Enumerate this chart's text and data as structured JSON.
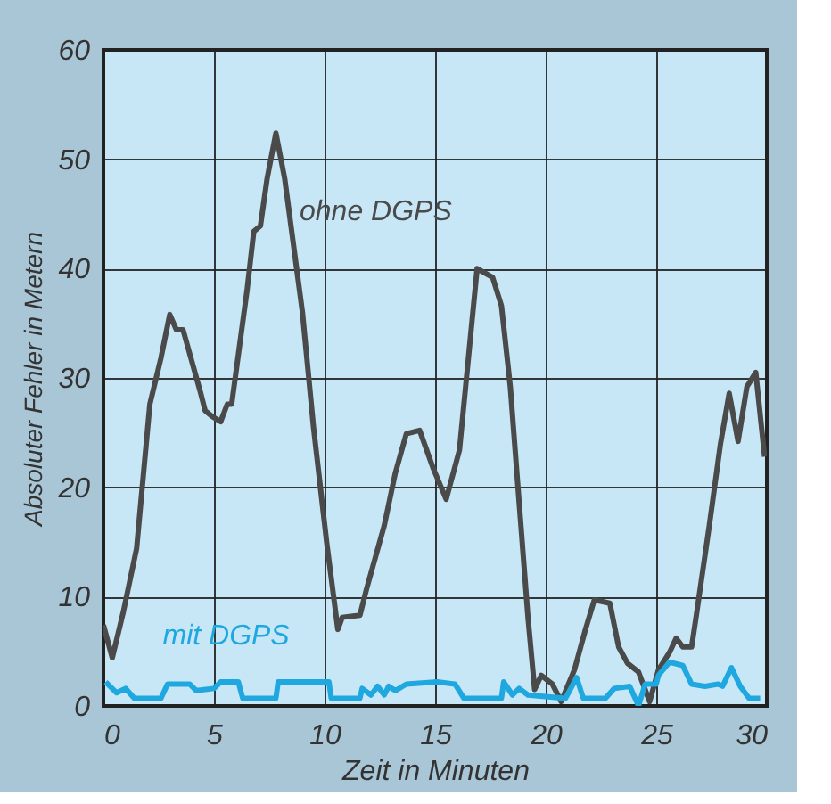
{
  "chart_data": {
    "type": "line",
    "xlabel": "Zeit in Minuten",
    "ylabel": "Absoluter Fehler in Metern",
    "xlim": [
      0,
      30
    ],
    "xticks": [
      0,
      5,
      10,
      15,
      20,
      25,
      30
    ],
    "ylim": [
      0,
      60
    ],
    "yticks": [
      0,
      10,
      20,
      30,
      40,
      50,
      60
    ],
    "grid": true,
    "marker": "none",
    "line_style": "solid",
    "series": [
      {
        "name": "ohne DGPS",
        "color": "#4a4a4a",
        "x": [
          0,
          0.4,
          0.9,
          1.5,
          2.1,
          2.6,
          3.0,
          3.3,
          3.6,
          4.4,
          4.6,
          4.9,
          5.3,
          5.6,
          5.8,
          6.5,
          6.8,
          7.1,
          7.4,
          7.8,
          8.2,
          9.0,
          9.5,
          10.1,
          10.6,
          10.8,
          11.6,
          11.9,
          12.7,
          13.2,
          13.7,
          14.3,
          14.9,
          15.5,
          16.1,
          16.9,
          17.6,
          18.0,
          18.4,
          18.8,
          19.2,
          19.5,
          19.8,
          20.3,
          20.7,
          21.3,
          21.8,
          22.2,
          22.9,
          23.3,
          23.7,
          24.2,
          24.7,
          25.1,
          25.6,
          25.9,
          26.2,
          26.6,
          26.8,
          27.4,
          27.9,
          28.3,
          28.7,
          29.1,
          29.5,
          29.9
        ],
        "values": [
          7.4,
          4.4,
          8.6,
          14.4,
          27.6,
          31.8,
          35.8,
          34.4,
          34.4,
          28.6,
          27,
          26.5,
          26,
          27.6,
          27.6,
          38.1,
          43.4,
          43.9,
          48.2,
          52.4,
          48.2,
          36,
          25.5,
          14.9,
          7,
          8.1,
          8.3,
          10.7,
          16.5,
          21.3,
          24.9,
          25.2,
          21.8,
          18.9,
          23.4,
          40,
          39.2,
          36.6,
          29.2,
          18.6,
          8.1,
          1.5,
          2.8,
          2,
          0.4,
          3.3,
          7,
          9.7,
          9.4,
          5.4,
          3.9,
          3.1,
          0.4,
          3.3,
          4.9,
          6.2,
          5.4,
          5.4,
          8.1,
          16.5,
          23.9,
          28.6,
          24.2,
          29.2,
          30.5,
          22.8
        ]
      },
      {
        "name": "mit DGPS",
        "color": "#1fa8e0",
        "x": [
          0.1,
          0.6,
          1.0,
          1.4,
          2.6,
          2.9,
          3.9,
          4.2,
          5.0,
          5.3,
          6.1,
          6.3,
          7.8,
          7.9,
          10.2,
          10.3,
          11.6,
          11.7,
          12.1,
          12.4,
          12.7,
          12.9,
          13.2,
          13.7,
          15.1,
          15.9,
          16.3,
          18.0,
          18.1,
          18.5,
          18.8,
          19.2,
          20.9,
          21.4,
          21.7,
          22.7,
          23.1,
          23.8,
          24.2,
          24.5,
          25.0,
          25.1,
          25.6,
          26.2,
          26.6,
          27.2,
          27.8,
          28.0,
          28.4,
          28.8,
          29.2,
          29.7
        ],
        "values": [
          2.2,
          1.2,
          1.6,
          0.7,
          0.7,
          2,
          2,
          1.4,
          1.6,
          2.2,
          2.2,
          0.7,
          0.7,
          2.2,
          2.2,
          0.7,
          0.7,
          1.6,
          1,
          1.8,
          1,
          1.8,
          1.4,
          2,
          2.2,
          2,
          0.7,
          0.7,
          2.2,
          1,
          1.6,
          1,
          0.7,
          2.6,
          0.7,
          0.7,
          1.6,
          1.8,
          0,
          2,
          2,
          2.8,
          4,
          3.7,
          2,
          1.8,
          2,
          1.8,
          3.5,
          1.8,
          0.7,
          0.7
        ]
      }
    ]
  }
}
